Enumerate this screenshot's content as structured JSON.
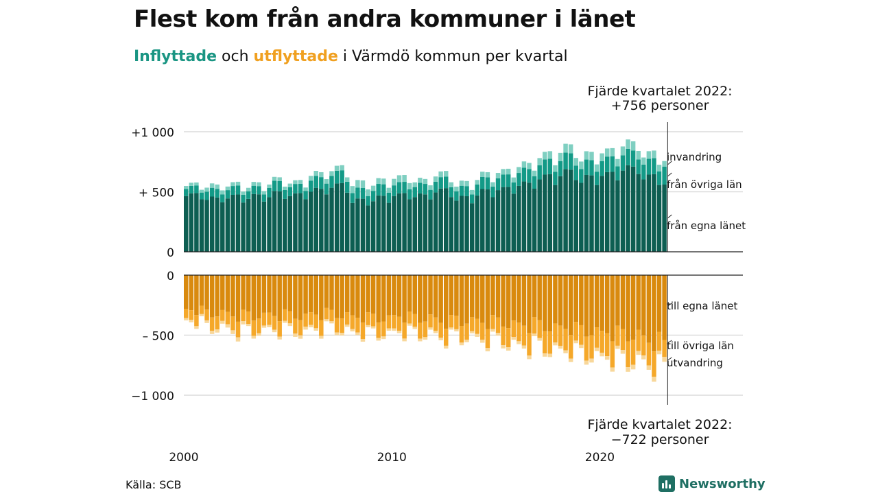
{
  "title": "Flest kom från andra kommuner i länet",
  "subtitle": {
    "in_word": "Inflyttade",
    "mid": " och ",
    "out_word": "utflyttade",
    "rest": " i Värmdö kommun per kvartal"
  },
  "source": "Källa: SCB",
  "brand": "Newsworthy",
  "colors": {
    "in_own": "#0d5e52",
    "in_other": "#139a87",
    "in_imm": "#7fcfc1",
    "out_own": "#d98a0e",
    "out_other": "#f5a82a",
    "out_emig": "#f8d79a",
    "grid": "#dcdcdc",
    "axis": "#222222"
  },
  "chart_data": {
    "type": "bar",
    "stacked": true,
    "frequency": "quarterly",
    "start": "2000 Q1",
    "end": "2022 Q4",
    "ylim_in": [
      0,
      1000
    ],
    "ylim_out": [
      -1000,
      0
    ],
    "y_ticks_in": [
      {
        "value": 1000,
        "label": "+1 000"
      },
      {
        "value": 500,
        "label": "+  500"
      },
      {
        "value": 0,
        "label": "0"
      }
    ],
    "y_ticks_out": [
      {
        "value": 0,
        "label": "0"
      },
      {
        "value": -500,
        "label": "–  500"
      },
      {
        "value": -1000,
        "label": "−1 000"
      }
    ],
    "x_ticks": [
      {
        "year": 2000,
        "label": "2000"
      },
      {
        "year": 2010,
        "label": "2010"
      },
      {
        "year": 2020,
        "label": "2020"
      }
    ],
    "grid": true,
    "annotations": {
      "top_line1": "Fjärde kvartalet 2022:",
      "top_line2": "+756 personer",
      "bottom_line1": "Fjärde kvartalet 2022:",
      "bottom_line2": "−722 personer"
    },
    "inflow_series_labels": [
      "invandring",
      "från övriga län",
      "från egna länet"
    ],
    "outflow_series_labels": [
      "till egna länet",
      "till övriga län",
      "utvandring"
    ],
    "yearly_inflow_own": [
      470,
      440,
      450,
      455,
      475,
      470,
      510,
      540,
      420,
      440,
      470,
      465,
      500,
      440,
      490,
      520,
      560,
      610,
      650,
      600,
      640,
      690,
      610
    ],
    "yearly_inflow_other": [
      60,
      70,
      70,
      65,
      80,
      75,
      95,
      100,
      85,
      90,
      90,
      85,
      90,
      80,
      95,
      100,
      110,
      120,
      130,
      120,
      125,
      130,
      125
    ],
    "yearly_inflow_imm": [
      25,
      35,
      30,
      30,
      30,
      30,
      40,
      40,
      60,
      45,
      55,
      40,
      45,
      40,
      40,
      45,
      50,
      60,
      70,
      65,
      65,
      75,
      60
    ],
    "yearly_outflow_own": [
      290,
      320,
      330,
      340,
      330,
      340,
      320,
      330,
      350,
      355,
      345,
      360,
      380,
      380,
      385,
      400,
      410,
      430,
      440,
      460,
      480,
      500,
      540
    ],
    "yearly_outflow_other": [
      80,
      100,
      110,
      115,
      110,
      115,
      110,
      110,
      120,
      115,
      115,
      120,
      120,
      125,
      135,
      145,
      160,
      170,
      175,
      180,
      190,
      195,
      180
    ],
    "yearly_outflow_emig": [
      20,
      25,
      30,
      20,
      20,
      25,
      20,
      20,
      20,
      20,
      20,
      20,
      20,
      20,
      25,
      25,
      25,
      25,
      25,
      30,
      30,
      35,
      35
    ],
    "quarter_factors_in": [
      0.95,
      1.08,
      1.02,
      0.95
    ],
    "quarter_factors_out": [
      0.92,
      1.06,
      1.12,
      0.9
    ],
    "last_quarter_in": {
      "own": 560,
      "other": 150,
      "imm": 46
    },
    "last_quarter_out": {
      "own": 540,
      "other": 140,
      "emig": 42
    }
  }
}
